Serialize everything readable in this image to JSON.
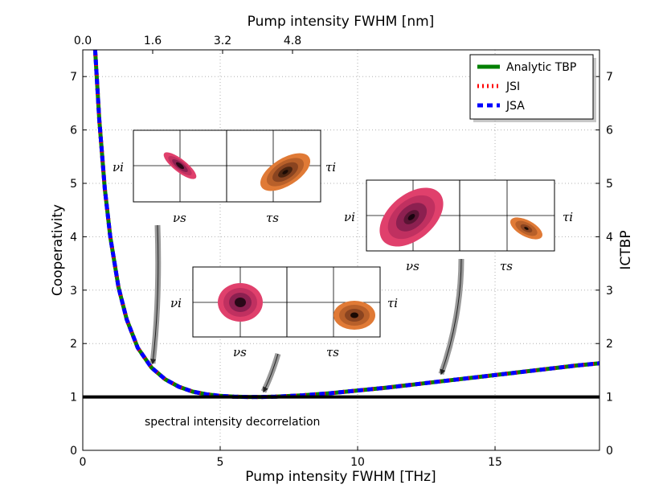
{
  "chart_data": {
    "type": "line",
    "xlabel": "Pump intensity FWHM [THz]",
    "ylabel": "Cooperativity",
    "x2label": "Pump intensity FWHM [nm]",
    "y2label": "ICTBP",
    "xlim": [
      0,
      18.8
    ],
    "ylim": [
      0,
      7.5
    ],
    "x_ticks": [
      "0",
      "5",
      "10",
      "15"
    ],
    "y_ticks": [
      "0",
      "1",
      "2",
      "3",
      "4",
      "5",
      "6",
      "7"
    ],
    "x2_ticks": [
      "0.0",
      "1.6",
      "3.2",
      "4.8"
    ],
    "y2_ticks": [
      "0",
      "1",
      "2",
      "3",
      "4",
      "5",
      "6",
      "7"
    ],
    "grid": true,
    "legend_position": "top-right",
    "series": [
      {
        "name": "Analytic TBP",
        "color": "#008000",
        "style": "solid",
        "x": [
          0.45,
          0.6,
          0.8,
          1.0,
          1.3,
          1.6,
          2.0,
          2.5,
          3.0,
          3.5,
          4.0,
          4.5,
          5.0,
          5.5,
          6.0,
          6.5,
          7.0,
          8.0,
          9.0,
          10.0,
          11.0,
          12.0,
          13.0,
          14.0,
          15.0,
          16.0,
          17.0,
          18.0,
          18.8
        ],
        "y": [
          7.5,
          6.2,
          4.9,
          4.0,
          3.05,
          2.45,
          1.92,
          1.55,
          1.33,
          1.19,
          1.1,
          1.05,
          1.02,
          1.005,
          1.0,
          1.0,
          1.005,
          1.03,
          1.07,
          1.12,
          1.17,
          1.23,
          1.29,
          1.35,
          1.41,
          1.47,
          1.53,
          1.59,
          1.63
        ]
      },
      {
        "name": "JSI",
        "color": "#ff0000",
        "style": "dotted",
        "x": [
          0.45,
          0.6,
          0.8,
          1.0,
          1.3,
          1.6,
          2.0,
          2.5,
          3.0,
          3.5,
          4.0,
          4.5,
          5.0,
          5.5,
          6.0,
          6.5,
          7.0,
          8.0,
          9.0,
          10.0,
          11.0,
          12.0,
          13.0,
          14.0,
          15.0,
          16.0,
          17.0,
          18.0,
          18.8
        ],
        "y": [
          7.5,
          6.2,
          4.9,
          4.0,
          3.05,
          2.45,
          1.92,
          1.55,
          1.33,
          1.19,
          1.1,
          1.05,
          1.02,
          1.005,
          1.0,
          1.0,
          1.005,
          1.03,
          1.07,
          1.12,
          1.17,
          1.23,
          1.29,
          1.35,
          1.41,
          1.47,
          1.53,
          1.59,
          1.63
        ]
      },
      {
        "name": "JSA",
        "color": "#0000ff",
        "style": "dashed",
        "x": [
          0.45,
          0.6,
          0.8,
          1.0,
          1.3,
          1.6,
          2.0,
          2.5,
          3.0,
          3.5,
          4.0,
          4.5,
          5.0,
          5.5,
          6.0,
          6.5,
          7.0,
          8.0,
          9.0,
          10.0,
          11.0,
          12.0,
          13.0,
          14.0,
          15.0,
          16.0,
          17.0,
          18.0,
          18.8
        ],
        "y": [
          7.5,
          6.2,
          4.9,
          4.0,
          3.05,
          2.45,
          1.92,
          1.55,
          1.33,
          1.19,
          1.1,
          1.05,
          1.02,
          1.005,
          1.0,
          1.0,
          1.005,
          1.03,
          1.07,
          1.12,
          1.17,
          1.23,
          1.29,
          1.35,
          1.41,
          1.47,
          1.53,
          1.59,
          1.63
        ]
      }
    ],
    "reference_line": {
      "y": 1,
      "color": "#000000"
    },
    "annotation": "spectral intensity decorrelation",
    "insets": [
      {
        "left_x": "νs",
        "left_y": "νi",
        "right_x": "τs",
        "right_y": "τi",
        "points_to_x": 2.5
      },
      {
        "left_x": "νs",
        "left_y": "νi",
        "right_x": "τs",
        "right_y": "τi",
        "points_to_x": 6.3
      },
      {
        "left_x": "νs",
        "left_y": "νi",
        "right_x": "τs",
        "right_y": "τi",
        "points_to_x": 13.0
      }
    ],
    "colors": {
      "jsi_fill": "#e0406c",
      "jsa_fill": "#e07a36",
      "arrow": "#999999"
    }
  }
}
